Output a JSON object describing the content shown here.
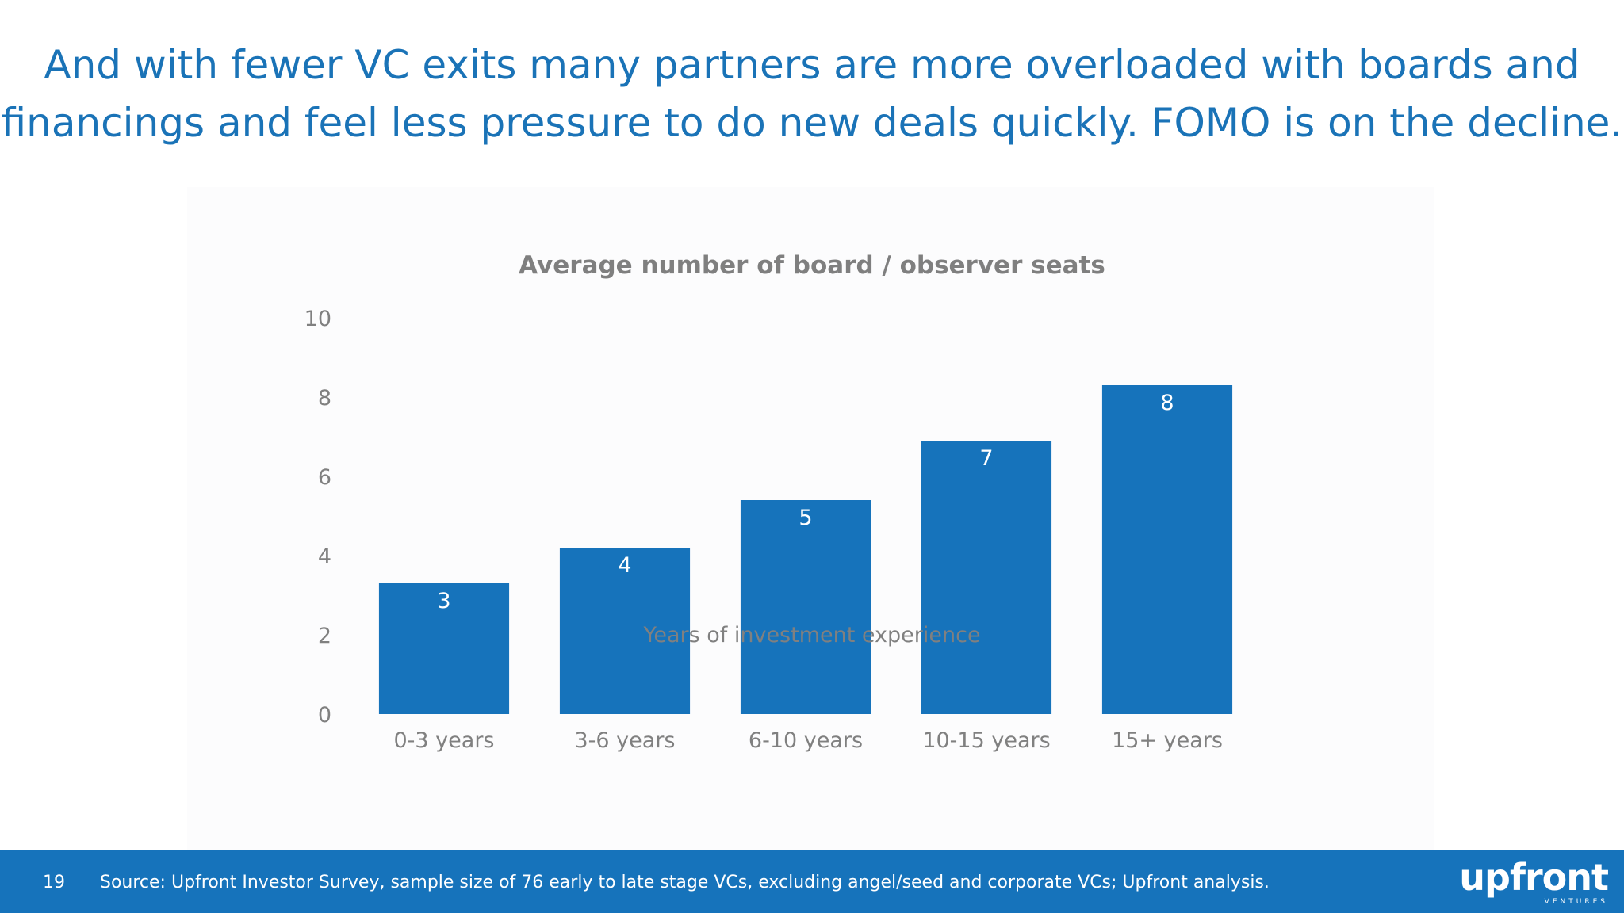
{
  "slide": {
    "headline_line1": "And with fewer VC exits many partners are more overloaded with boards and",
    "headline_line2": "financings and feel less pressure to do new deals quickly. FOMO is on the decline.",
    "page_number": "19",
    "source": "Source: Upfront Investor Survey, sample size of 76 early to late stage VCs, excluding angel/seed and corporate VCs; Upfront analysis.",
    "logo_text": "upfront",
    "logo_subtext": "VENTURES"
  },
  "colors": {
    "accent": "#1a73b7",
    "bar": "#1673bb",
    "footer": "#1673bb",
    "axis_text": "#808080",
    "title_text": "#7f7f7f"
  },
  "chart_data": {
    "type": "bar",
    "title": "Average number of board / observer seats",
    "xlabel": "Years of investment experience",
    "ylabel": "",
    "categories": [
      "0-3 years",
      "3-6 years",
      "6-10 years",
      "10-15 years",
      "15+ years"
    ],
    "values": [
      3.3,
      4.2,
      5.4,
      6.9,
      8.3
    ],
    "data_labels": [
      "3",
      "4",
      "5",
      "7",
      "8"
    ],
    "ylim": [
      0,
      10
    ],
    "yticks": [
      "0",
      "2",
      "4",
      "6",
      "8",
      "10"
    ],
    "grid": false,
    "legend": "none"
  }
}
